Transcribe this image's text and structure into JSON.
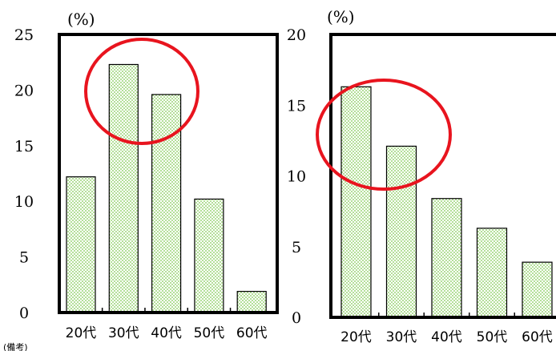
{
  "chart_data": [
    {
      "type": "bar",
      "categories": [
        "20代",
        "30代",
        "40代",
        "50代",
        "60代"
      ],
      "values": [
        12.2,
        22.3,
        19.6,
        10.2,
        1.9
      ],
      "ylim": [
        0,
        25
      ],
      "yticks": [
        "0",
        "5",
        "10",
        "15",
        "20",
        "25"
      ],
      "unit": "(%)",
      "bar_color": "#7ec850",
      "highlight_color": "#e8141e",
      "grid": false,
      "legend": "none"
    },
    {
      "type": "bar",
      "categories": [
        "20代",
        "30代",
        "40代",
        "50代",
        "60代"
      ],
      "values": [
        16.3,
        12.1,
        8.4,
        6.3,
        3.9
      ],
      "ylim": [
        0,
        20
      ],
      "yticks": [
        "0",
        "5",
        "10",
        "15",
        "20"
      ],
      "unit": "(%)",
      "bar_color": "#7ec850",
      "highlight_color": "#e8141e",
      "grid": false,
      "legend": "none"
    }
  ],
  "note": "(備考)"
}
